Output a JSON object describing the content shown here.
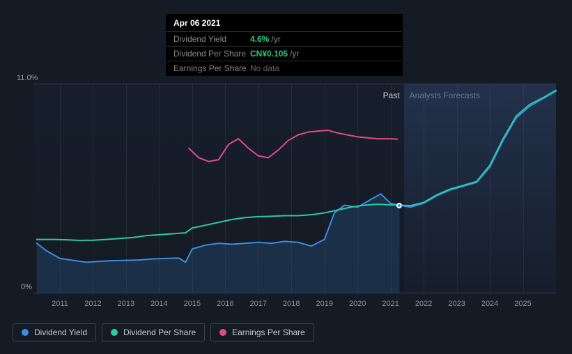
{
  "tooltip": {
    "date": "Apr 06 2021",
    "rows": [
      {
        "label": "Dividend Yield",
        "value": "4.6%",
        "unit": "/yr",
        "value_color": "#2dc97e"
      },
      {
        "label": "Dividend Per Share",
        "value": "CN¥0.105",
        "unit": "/yr",
        "value_color": "#2dc97e"
      },
      {
        "label": "Earnings Per Share",
        "nodata": "No data"
      }
    ]
  },
  "chart": {
    "type": "line",
    "background_color": "#151b24",
    "grid_color": "#39414d",
    "ylim": [
      0,
      11.0
    ],
    "y_top_label": "11.0%",
    "y_bot_label": "0%",
    "years": [
      2011,
      2012,
      2013,
      2014,
      2015,
      2016,
      2017,
      2018,
      2019,
      2020,
      2021,
      2022,
      2023,
      2024,
      2025
    ],
    "x_min_year": 2010.2,
    "x_max_year": 2026.0,
    "split_year": 2021.4,
    "section_past": "Past",
    "section_forecast": "Analysts Forecasts",
    "axis_text_color": "#8a94a1",
    "axis_fontsize": 11,
    "marker_year": 2021.27,
    "marker_y": 4.6,
    "series": [
      {
        "name": "Dividend Yield",
        "color": "#3a8de0",
        "width": 2,
        "fill": "rgba(58,141,224,0.18)",
        "past": [
          [
            2010.3,
            2.6
          ],
          [
            2010.6,
            2.2
          ],
          [
            2011.0,
            1.8
          ],
          [
            2011.4,
            1.7
          ],
          [
            2011.8,
            1.6
          ],
          [
            2012.2,
            1.65
          ],
          [
            2012.6,
            1.68
          ],
          [
            2013.0,
            1.7
          ],
          [
            2013.4,
            1.72
          ],
          [
            2013.8,
            1.78
          ],
          [
            2014.2,
            1.8
          ],
          [
            2014.6,
            1.82
          ],
          [
            2014.8,
            1.6
          ],
          [
            2015.0,
            2.3
          ],
          [
            2015.4,
            2.5
          ],
          [
            2015.8,
            2.6
          ],
          [
            2016.2,
            2.55
          ],
          [
            2016.6,
            2.6
          ],
          [
            2017.0,
            2.65
          ],
          [
            2017.4,
            2.6
          ],
          [
            2017.8,
            2.7
          ],
          [
            2018.2,
            2.65
          ],
          [
            2018.6,
            2.45
          ],
          [
            2019.0,
            2.8
          ],
          [
            2019.3,
            4.2
          ],
          [
            2019.6,
            4.6
          ],
          [
            2020.0,
            4.5
          ],
          [
            2020.4,
            4.9
          ],
          [
            2020.7,
            5.2
          ],
          [
            2021.0,
            4.7
          ],
          [
            2021.27,
            4.6
          ]
        ],
        "forecast": [
          [
            2021.27,
            4.6
          ],
          [
            2021.6,
            4.5
          ],
          [
            2022.0,
            4.7
          ],
          [
            2022.4,
            5.1
          ],
          [
            2022.8,
            5.4
          ],
          [
            2023.2,
            5.6
          ],
          [
            2023.6,
            5.8
          ],
          [
            2024.0,
            6.6
          ],
          [
            2024.4,
            8.0
          ],
          [
            2024.8,
            9.2
          ],
          [
            2025.2,
            9.8
          ],
          [
            2025.6,
            10.2
          ],
          [
            2026.0,
            10.6
          ]
        ]
      },
      {
        "name": "Dividend Per Share",
        "color": "#2dc9a3",
        "width": 2,
        "past": [
          [
            2010.3,
            2.8
          ],
          [
            2010.8,
            2.8
          ],
          [
            2011.2,
            2.78
          ],
          [
            2011.6,
            2.75
          ],
          [
            2012.0,
            2.76
          ],
          [
            2012.4,
            2.8
          ],
          [
            2012.8,
            2.85
          ],
          [
            2013.2,
            2.9
          ],
          [
            2013.6,
            3.0
          ],
          [
            2014.0,
            3.05
          ],
          [
            2014.4,
            3.1
          ],
          [
            2014.8,
            3.15
          ],
          [
            2015.0,
            3.4
          ],
          [
            2015.4,
            3.55
          ],
          [
            2015.8,
            3.7
          ],
          [
            2016.2,
            3.85
          ],
          [
            2016.6,
            3.95
          ],
          [
            2017.0,
            4.0
          ],
          [
            2017.4,
            4.02
          ],
          [
            2017.8,
            4.05
          ],
          [
            2018.2,
            4.05
          ],
          [
            2018.6,
            4.1
          ],
          [
            2019.0,
            4.2
          ],
          [
            2019.4,
            4.35
          ],
          [
            2019.8,
            4.5
          ],
          [
            2020.2,
            4.6
          ],
          [
            2020.6,
            4.65
          ],
          [
            2021.0,
            4.62
          ],
          [
            2021.27,
            4.6
          ]
        ],
        "forecast": [
          [
            2021.27,
            4.6
          ],
          [
            2021.6,
            4.58
          ],
          [
            2022.0,
            4.75
          ],
          [
            2022.4,
            5.15
          ],
          [
            2022.8,
            5.45
          ],
          [
            2023.2,
            5.65
          ],
          [
            2023.6,
            5.85
          ],
          [
            2024.0,
            6.7
          ],
          [
            2024.4,
            8.1
          ],
          [
            2024.8,
            9.3
          ],
          [
            2025.2,
            9.9
          ],
          [
            2025.6,
            10.25
          ],
          [
            2026.0,
            10.65
          ]
        ]
      },
      {
        "name": "Earnings Per Share",
        "color": "#e14a8b",
        "width": 2,
        "past": [
          [
            2014.9,
            7.6
          ],
          [
            2015.2,
            7.1
          ],
          [
            2015.5,
            6.9
          ],
          [
            2015.8,
            7.0
          ],
          [
            2016.1,
            7.8
          ],
          [
            2016.4,
            8.1
          ],
          [
            2016.7,
            7.6
          ],
          [
            2017.0,
            7.2
          ],
          [
            2017.3,
            7.1
          ],
          [
            2017.6,
            7.5
          ],
          [
            2017.9,
            8.0
          ],
          [
            2018.2,
            8.3
          ],
          [
            2018.5,
            8.45
          ],
          [
            2018.8,
            8.5
          ],
          [
            2019.1,
            8.55
          ],
          [
            2019.4,
            8.4
          ],
          [
            2019.7,
            8.3
          ],
          [
            2020.0,
            8.2
          ],
          [
            2020.3,
            8.15
          ],
          [
            2020.6,
            8.1
          ],
          [
            2020.9,
            8.1
          ],
          [
            2021.2,
            8.08
          ]
        ],
        "forecast": []
      }
    ]
  },
  "legend": {
    "border_color": "#3a4250",
    "text_color": "#c1c9d3",
    "items": [
      {
        "name": "Dividend Yield",
        "color": "#3a8de0"
      },
      {
        "name": "Dividend Per Share",
        "color": "#2dc9a3"
      },
      {
        "name": "Earnings Per Share",
        "color": "#e14a8b"
      }
    ]
  }
}
